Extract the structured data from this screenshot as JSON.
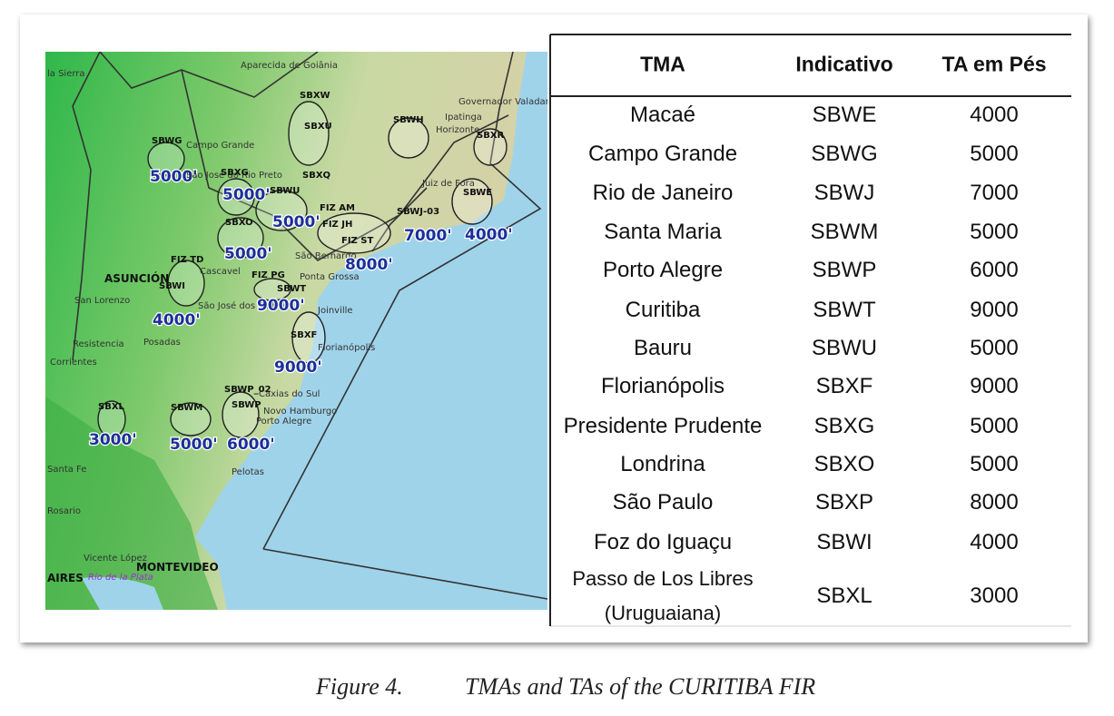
{
  "map": {
    "labels": [
      "la Sierra",
      "Aparecida de Goiânia",
      "SBXW",
      "SBXU",
      "SBWH",
      "Governador Valadares",
      "Ipatinga",
      "Horizonte",
      "SBXR",
      "SBWG",
      "Campo Grande",
      "5000'",
      "São José do Rio Preto",
      "SBXG",
      "SBXQ",
      "5000'",
      "SBWU",
      "Juiz de Fora",
      "SBWE",
      "FIZ AM",
      "SBXO",
      "5000'",
      "FIZ JH",
      "SBWJ-03",
      "FIZ ST",
      "7000'",
      "4000'",
      "5000'",
      "São Bernardo",
      "8000'",
      "FIZ TD",
      "ASUNCIÓN",
      "SBWI",
      "Cascavel",
      "FIZ PG",
      "SBWT",
      "Ponta Grossa",
      "San Lorenzo",
      "São José dos Pinhais",
      "9000'",
      "Joinville",
      "4000'",
      "SBXF",
      "Resistencia",
      "Posadas",
      "Florianópolis",
      "Corrientes",
      "9000'",
      "SBWP_02",
      "SBWP",
      "Caxias do Sul",
      "Novo Hamburgo",
      "Porto Alegre",
      "SBXL",
      "SBWM",
      "3000'",
      "5000'",
      "6000'",
      "Pelotas",
      "Santa Fe",
      "Rosario",
      "Vicente López",
      "MONTEVIDEO",
      "AIRES",
      "Río de la Plata"
    ]
  },
  "table": {
    "headers": [
      "TMA",
      "Indicativo",
      "TA em Pés"
    ],
    "rows": [
      [
        "Macaé",
        "SBWE",
        4000
      ],
      [
        "Campo Grande",
        "SBWG",
        5000
      ],
      [
        "Rio de Janeiro",
        "SBWJ",
        7000
      ],
      [
        "Santa Maria",
        "SBWM",
        5000
      ],
      [
        "Porto Alegre",
        "SBWP",
        6000
      ],
      [
        "Curitiba",
        "SBWT",
        9000
      ],
      [
        "Bauru",
        "SBWU",
        5000
      ],
      [
        "Florianópolis",
        "SBXF",
        9000
      ],
      [
        "Presidente Prudente",
        "SBXG",
        5000
      ],
      [
        "Londrina",
        "SBXO",
        5000
      ],
      [
        "São Paulo",
        "SBXP",
        8000
      ],
      [
        "Foz do Iguaçu",
        "SBWI",
        4000
      ],
      [
        [
          "Passo de Los Libres",
          "(Uruguaiana)"
        ],
        "SBXL",
        3000
      ]
    ]
  },
  "caption": {
    "number": "Figure 4.",
    "text": "TMAs and TAs of the CURITIBA FIR"
  }
}
